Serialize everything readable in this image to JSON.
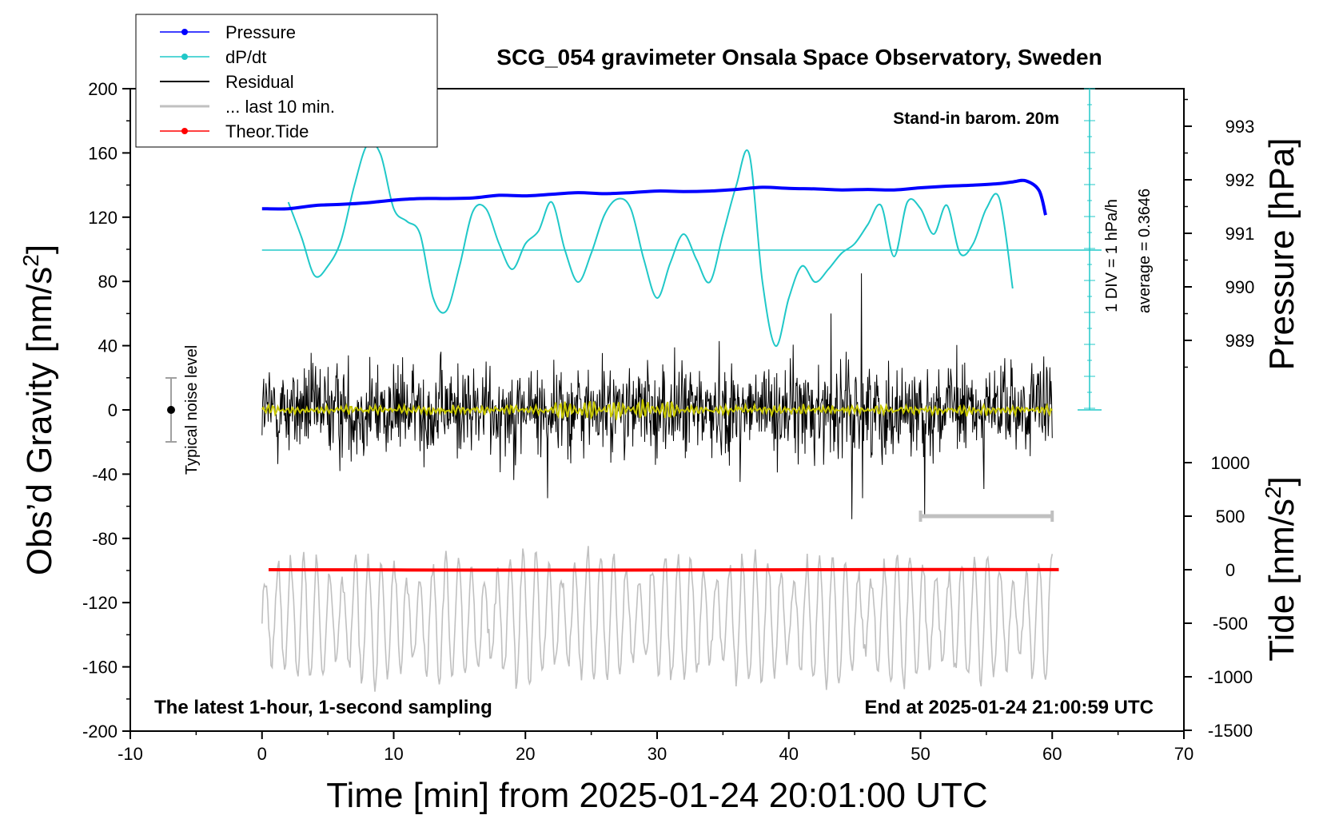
{
  "chart_data": {
    "type": "line",
    "title": "SCG_054 gravimeter Onsala Space Observatory, Sweden",
    "xlabel": "Time [min] from 2025-01-24 20:01:00 UTC",
    "ylabel_left": "Obs’d Gravity [nm/s",
    "ylabel_left_sup": "2",
    "ylabel_left_close": "]",
    "ylabel_right_pressure": "Pressure [hPa]",
    "ylabel_right_tide": "Tide [nm/s",
    "ylabel_right_tide_sup": "2",
    "ylabel_right_tide_close": "]",
    "xlim": [
      -10,
      70
    ],
    "ylim_left": [
      -200,
      200
    ],
    "xticks": [
      "-10",
      "0",
      "10",
      "20",
      "30",
      "40",
      "50",
      "60",
      "70"
    ],
    "yticks_left": [
      "200",
      "160",
      "120",
      "80",
      "40",
      "0",
      "-40",
      "-80",
      "-120",
      "-160",
      "-200"
    ],
    "yticks_pressure": [
      "993",
      "992",
      "991",
      "990",
      "989"
    ],
    "yticks_tide": [
      "1000",
      "500",
      "0",
      "-500",
      "-1000",
      "-1500"
    ],
    "annotations": {
      "barometer": "Stand-in barom. 20m",
      "bottom_left": "The latest 1-hour, 1-second sampling",
      "bottom_right": "End at 2025-01-24 21:00:59 UTC",
      "noise": "Typical noise level",
      "dpdt_scale": "1 DIV = 1 hPa/h",
      "dpdt_average": "average = 0.3646"
    },
    "legend": [
      {
        "label": "Pressure",
        "color": "#0000ff",
        "marker": "dot"
      },
      {
        "label": "dP/dt",
        "color": "#20c8c8",
        "marker": "dot"
      },
      {
        "label": "Residual",
        "color": "#000000",
        "marker": "none"
      },
      {
        "label": "... last 10 min.",
        "color": "#c0c0c0",
        "marker": "none"
      },
      {
        "label": "Theor.Tide",
        "color": "#ff0000",
        "marker": "dot"
      }
    ],
    "colors": {
      "pressure": "#0000ff",
      "dpdt": "#20c8c8",
      "residual": "#000000",
      "smoothed": "#c8c800",
      "last10": "#c0c0c0",
      "tide": "#ff0000"
    },
    "series": [
      {
        "name": "Pressure",
        "x": [
          0,
          2,
          4,
          6,
          8,
          10,
          12,
          14,
          16,
          18,
          20,
          22,
          24,
          26,
          28,
          30,
          32,
          34,
          36,
          38,
          40,
          42,
          44,
          46,
          48,
          50,
          52,
          54,
          56,
          57,
          58,
          59,
          59.5
        ],
        "values_hpa": [
          991.46,
          991.46,
          991.52,
          991.54,
          991.57,
          991.62,
          991.65,
          991.65,
          991.66,
          991.71,
          991.7,
          991.73,
          991.76,
          991.74,
          991.76,
          991.79,
          991.78,
          991.79,
          991.82,
          991.86,
          991.84,
          991.83,
          991.81,
          991.82,
          991.81,
          991.85,
          991.88,
          991.9,
          991.93,
          991.96,
          991.98,
          991.8,
          991.34
        ]
      },
      {
        "name": "dP/dt",
        "x": [
          2,
          3,
          4,
          5,
          6,
          7,
          8,
          9,
          10,
          11,
          12,
          13,
          14,
          15,
          16,
          17,
          18,
          19,
          20,
          21,
          22,
          23,
          24,
          25,
          26,
          27,
          28,
          29,
          30,
          31,
          32,
          33,
          34,
          35,
          36,
          37,
          38,
          39,
          40,
          41,
          42,
          43,
          44,
          45,
          46,
          47,
          48,
          49,
          50,
          51,
          52,
          53,
          54,
          55,
          56,
          57
        ],
        "values_div": [
          1.5,
          0.4,
          -0.8,
          -0.5,
          0.3,
          2.0,
          3.3,
          3.0,
          1.3,
          0.9,
          0.5,
          -1.5,
          -1.9,
          -0.5,
          1.2,
          1.3,
          0.2,
          -0.6,
          0.2,
          0.6,
          1.5,
          0.0,
          -1.0,
          -0.1,
          1.1,
          1.6,
          1.3,
          -0.3,
          -1.5,
          -0.4,
          0.5,
          -0.3,
          -1.0,
          0.5,
          2.0,
          3.0,
          -1.0,
          -3.0,
          -1.5,
          -0.5,
          -1.0,
          -0.6,
          -0.1,
          0.2,
          0.8,
          1.4,
          -0.2,
          1.5,
          1.3,
          0.5,
          1.4,
          -0.1,
          0.2,
          1.3,
          1.6,
          -1.2
        ]
      },
      {
        "name": "Residual",
        "x_range": [
          0,
          60
        ],
        "amplitude_nms2": 40,
        "spikes": [
          {
            "x": 45.5,
            "value": 85
          },
          {
            "x": 45.6,
            "value": -55
          },
          {
            "x": 44.8,
            "value": -68
          },
          {
            "x": 50.3,
            "value": -65
          },
          {
            "x": 21.7,
            "value": -55
          },
          {
            "x": 43.2,
            "value": 60
          }
        ]
      },
      {
        "name": "Theor.Tide",
        "x": [
          0.5,
          10,
          20,
          30,
          40,
          50,
          60.5
        ],
        "values_nms2": [
          0,
          -2,
          -4,
          -3,
          -1,
          2,
          1
        ]
      }
    ],
    "last10_bar": {
      "x_start": 50.0,
      "x_end": 60.0,
      "value_nms2": 500
    }
  }
}
